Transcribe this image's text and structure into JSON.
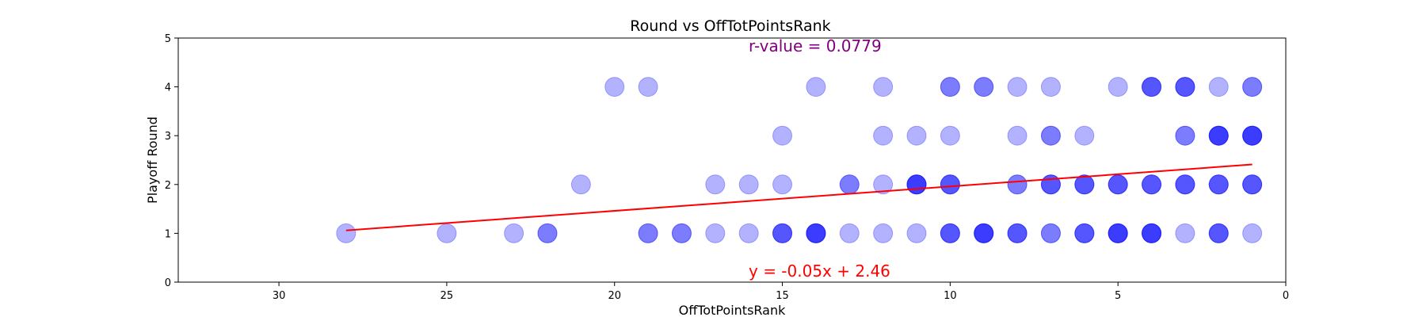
{
  "chart_data": {
    "type": "scatter",
    "title": "Round vs OffTotPointsRank",
    "xlabel": "OffTotPointsRank",
    "ylabel": "Playoff Round",
    "xlim": [
      33,
      0
    ],
    "ylim": [
      0,
      5
    ],
    "x_inverted": true,
    "xticks": [
      30,
      25,
      20,
      15,
      10,
      5,
      0
    ],
    "yticks": [
      0,
      1,
      2,
      3,
      4,
      5
    ],
    "grid": false,
    "point_color": "#0000ff",
    "point_alpha_per_point": 0.3,
    "fit_line_color": "#ff0000",
    "r_value_color": "#800080",
    "points": [
      {
        "x": 28,
        "y": 1
      },
      {
        "x": 25,
        "y": 1
      },
      {
        "x": 23,
        "y": 1
      },
      {
        "x": 22,
        "y": 1
      },
      {
        "x": 22,
        "y": 1
      },
      {
        "x": 19,
        "y": 1
      },
      {
        "x": 19,
        "y": 1
      },
      {
        "x": 18,
        "y": 1
      },
      {
        "x": 18,
        "y": 1
      },
      {
        "x": 17,
        "y": 1
      },
      {
        "x": 16,
        "y": 1
      },
      {
        "x": 15,
        "y": 1
      },
      {
        "x": 15,
        "y": 1
      },
      {
        "x": 15,
        "y": 1
      },
      {
        "x": 14,
        "y": 1
      },
      {
        "x": 14,
        "y": 1
      },
      {
        "x": 14,
        "y": 1
      },
      {
        "x": 14,
        "y": 1
      },
      {
        "x": 13,
        "y": 1
      },
      {
        "x": 12,
        "y": 1
      },
      {
        "x": 11,
        "y": 1
      },
      {
        "x": 10,
        "y": 1
      },
      {
        "x": 10,
        "y": 1
      },
      {
        "x": 10,
        "y": 1
      },
      {
        "x": 9,
        "y": 1
      },
      {
        "x": 9,
        "y": 1
      },
      {
        "x": 9,
        "y": 1
      },
      {
        "x": 9,
        "y": 1
      },
      {
        "x": 8,
        "y": 1
      },
      {
        "x": 8,
        "y": 1
      },
      {
        "x": 8,
        "y": 1
      },
      {
        "x": 7,
        "y": 1
      },
      {
        "x": 7,
        "y": 1
      },
      {
        "x": 6,
        "y": 1
      },
      {
        "x": 6,
        "y": 1
      },
      {
        "x": 6,
        "y": 1
      },
      {
        "x": 5,
        "y": 1
      },
      {
        "x": 5,
        "y": 1
      },
      {
        "x": 5,
        "y": 1
      },
      {
        "x": 5,
        "y": 1
      },
      {
        "x": 4,
        "y": 1
      },
      {
        "x": 4,
        "y": 1
      },
      {
        "x": 4,
        "y": 1
      },
      {
        "x": 4,
        "y": 1
      },
      {
        "x": 3,
        "y": 1
      },
      {
        "x": 2,
        "y": 1
      },
      {
        "x": 2,
        "y": 1
      },
      {
        "x": 2,
        "y": 1
      },
      {
        "x": 1,
        "y": 1
      },
      {
        "x": 21,
        "y": 2
      },
      {
        "x": 17,
        "y": 2
      },
      {
        "x": 16,
        "y": 2
      },
      {
        "x": 15,
        "y": 2
      },
      {
        "x": 13,
        "y": 2
      },
      {
        "x": 13,
        "y": 2
      },
      {
        "x": 12,
        "y": 2
      },
      {
        "x": 11,
        "y": 2
      },
      {
        "x": 11,
        "y": 2
      },
      {
        "x": 11,
        "y": 2
      },
      {
        "x": 11,
        "y": 2
      },
      {
        "x": 10,
        "y": 2
      },
      {
        "x": 10,
        "y": 2
      },
      {
        "x": 10,
        "y": 2
      },
      {
        "x": 8,
        "y": 2
      },
      {
        "x": 8,
        "y": 2
      },
      {
        "x": 7,
        "y": 2
      },
      {
        "x": 7,
        "y": 2
      },
      {
        "x": 7,
        "y": 2
      },
      {
        "x": 6,
        "y": 2
      },
      {
        "x": 6,
        "y": 2
      },
      {
        "x": 6,
        "y": 2
      },
      {
        "x": 5,
        "y": 2
      },
      {
        "x": 5,
        "y": 2
      },
      {
        "x": 5,
        "y": 2
      },
      {
        "x": 4,
        "y": 2
      },
      {
        "x": 4,
        "y": 2
      },
      {
        "x": 4,
        "y": 2
      },
      {
        "x": 3,
        "y": 2
      },
      {
        "x": 3,
        "y": 2
      },
      {
        "x": 3,
        "y": 2
      },
      {
        "x": 2,
        "y": 2
      },
      {
        "x": 2,
        "y": 2
      },
      {
        "x": 2,
        "y": 2
      },
      {
        "x": 1,
        "y": 2
      },
      {
        "x": 1,
        "y": 2
      },
      {
        "x": 1,
        "y": 2
      },
      {
        "x": 15,
        "y": 3
      },
      {
        "x": 12,
        "y": 3
      },
      {
        "x": 11,
        "y": 3
      },
      {
        "x": 10,
        "y": 3
      },
      {
        "x": 8,
        "y": 3
      },
      {
        "x": 7,
        "y": 3
      },
      {
        "x": 7,
        "y": 3
      },
      {
        "x": 6,
        "y": 3
      },
      {
        "x": 3,
        "y": 3
      },
      {
        "x": 3,
        "y": 3
      },
      {
        "x": 2,
        "y": 3
      },
      {
        "x": 2,
        "y": 3
      },
      {
        "x": 2,
        "y": 3
      },
      {
        "x": 2,
        "y": 3
      },
      {
        "x": 1,
        "y": 3
      },
      {
        "x": 1,
        "y": 3
      },
      {
        "x": 1,
        "y": 3
      },
      {
        "x": 1,
        "y": 3
      },
      {
        "x": 20,
        "y": 4
      },
      {
        "x": 19,
        "y": 4
      },
      {
        "x": 14,
        "y": 4
      },
      {
        "x": 12,
        "y": 4
      },
      {
        "x": 10,
        "y": 4
      },
      {
        "x": 10,
        "y": 4
      },
      {
        "x": 9,
        "y": 4
      },
      {
        "x": 9,
        "y": 4
      },
      {
        "x": 8,
        "y": 4
      },
      {
        "x": 7,
        "y": 4
      },
      {
        "x": 5,
        "y": 4
      },
      {
        "x": 4,
        "y": 4
      },
      {
        "x": 4,
        "y": 4
      },
      {
        "x": 4,
        "y": 4
      },
      {
        "x": 3,
        "y": 4
      },
      {
        "x": 3,
        "y": 4
      },
      {
        "x": 3,
        "y": 4
      },
      {
        "x": 2,
        "y": 4
      },
      {
        "x": 1,
        "y": 4
      },
      {
        "x": 1,
        "y": 4
      }
    ],
    "fit_line": {
      "slope": -0.05,
      "intercept": 2.46,
      "x_range": [
        1,
        28
      ]
    },
    "annotations": {
      "r_value": "r-value = 0.0779",
      "equation": "y = -0.05x + 2.46"
    }
  }
}
